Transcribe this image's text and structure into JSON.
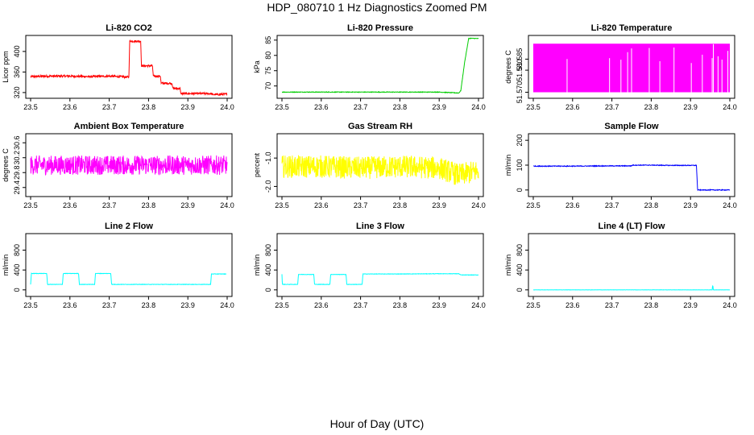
{
  "figure": {
    "title": "HDP_080710  1 Hz Diagnostics Zoomed PM",
    "xlabel": "Hour of Day (UTC)"
  },
  "chart_data": [
    {
      "type": "line",
      "title": "Li-820 CO2",
      "ylabel": "Licor ppm",
      "color": "#ff0000",
      "xlim": [
        23.5,
        24.0
      ],
      "ylim": [
        312,
        428
      ],
      "xticks": [
        "23.5",
        "23.6",
        "23.7",
        "23.8",
        "23.9",
        "24.0"
      ],
      "yticks": [
        "320",
        "360",
        "400"
      ],
      "noise": 2,
      "x": [
        23.5,
        23.55,
        23.6,
        23.65,
        23.7,
        23.75,
        23.752,
        23.78,
        23.782,
        23.81,
        23.812,
        23.83,
        23.832,
        23.86,
        23.862,
        23.88,
        23.882,
        23.96,
        23.962,
        24.0
      ],
      "y": [
        351,
        352,
        352,
        351,
        352,
        350,
        420,
        420,
        372,
        372,
        352,
        352,
        338,
        338,
        328,
        328,
        318,
        318,
        316,
        317
      ]
    },
    {
      "type": "line",
      "title": "Li-820 Pressure",
      "ylabel": "kPa",
      "color": "#00cc00",
      "xlim": [
        23.5,
        24.0
      ],
      "ylim": [
        66.5,
        86
      ],
      "xticks": [
        "23.5",
        "23.6",
        "23.7",
        "23.8",
        "23.9",
        "24.0"
      ],
      "yticks": [
        "70",
        "75",
        "80",
        "85"
      ],
      "noise": 0.1,
      "x": [
        23.5,
        23.6,
        23.7,
        23.8,
        23.9,
        23.95,
        23.955,
        23.965,
        23.975,
        23.98,
        24.0
      ],
      "y": [
        68,
        68,
        68,
        68,
        68,
        67.7,
        68.5,
        78,
        85.5,
        85.6,
        85.5
      ]
    },
    {
      "type": "area",
      "title": "Li-820 Temperature",
      "ylabel": "degrees C",
      "color": "#ff00ff",
      "xlim": [
        23.5,
        24.0
      ],
      "ylim": [
        51.568,
        51.595
      ],
      "xticks": [
        "23.5",
        "23.6",
        "23.7",
        "23.8",
        "23.9",
        "24.0"
      ],
      "yticks": [
        "51.570",
        "51.580",
        "51.585"
      ],
      "band": [
        51.57,
        51.592
      ],
      "gaps": [
        23.586,
        23.694,
        23.723,
        23.74,
        23.75,
        23.795,
        23.822,
        23.858,
        23.902,
        23.93,
        23.955,
        23.958,
        23.97,
        23.98,
        23.995
      ]
    },
    {
      "type": "line",
      "title": "Ambient Box Temperature",
      "ylabel": "degrees C",
      "color": "#ff00ff",
      "xlim": [
        23.5,
        24.0
      ],
      "ylim": [
        29.2,
        30.8
      ],
      "xticks": [
        "23.5",
        "23.6",
        "23.7",
        "23.8",
        "23.9",
        "24.0"
      ],
      "yticks": [
        "29.4",
        "29.8",
        "30.2",
        "30.6"
      ],
      "noise": 0.26,
      "x": [
        23.5,
        24.0
      ],
      "y": [
        30.0,
        30.0
      ]
    },
    {
      "type": "line",
      "title": "Gas Stream RH",
      "ylabel": "percent",
      "color": "#ffff00",
      "xlim": [
        23.5,
        24.0
      ],
      "ylim": [
        -2.3,
        -0.2
      ],
      "xticks": [
        "23.5",
        "23.6",
        "23.7",
        "23.8",
        "23.9",
        "24.0"
      ],
      "yticks": [
        "-2.0",
        "-1.0"
      ],
      "noise": 0.4,
      "x": [
        23.5,
        23.6,
        23.7,
        23.8,
        23.9,
        23.95,
        24.0
      ],
      "y": [
        -1.3,
        -1.3,
        -1.35,
        -1.3,
        -1.35,
        -1.6,
        -1.45
      ]
    },
    {
      "type": "line",
      "title": "Sample Flow",
      "ylabel": "ml/min",
      "color": "#0000ff",
      "xlim": [
        23.5,
        24.0
      ],
      "ylim": [
        -20,
        220
      ],
      "xticks": [
        "23.5",
        "23.6",
        "23.7",
        "23.8",
        "23.9",
        "24.0"
      ],
      "yticks": [
        "0",
        "100",
        "200"
      ],
      "noise": 1.5,
      "x": [
        23.5,
        23.6,
        23.7,
        23.75,
        23.752,
        23.8,
        23.85,
        23.915,
        23.918,
        24.0
      ],
      "y": [
        96,
        96,
        97,
        97,
        100,
        100,
        99,
        99,
        0,
        0
      ]
    },
    {
      "type": "line",
      "title": "Line 2 Flow",
      "ylabel": "ml/min",
      "color": "#00ffff",
      "xlim": [
        23.5,
        24.0
      ],
      "ylim": [
        -100,
        1100
      ],
      "xticks": [
        "23.5",
        "23.6",
        "23.7",
        "23.8",
        "23.9",
        "24.0"
      ],
      "yticks": [
        "0",
        "400",
        "800"
      ],
      "noise": 4,
      "x": [
        23.5,
        23.502,
        23.541,
        23.543,
        23.581,
        23.583,
        23.622,
        23.624,
        23.663,
        23.665,
        23.704,
        23.706,
        23.958,
        23.96,
        23.998
      ],
      "y": [
        110,
        330,
        330,
        110,
        110,
        330,
        330,
        110,
        110,
        330,
        330,
        110,
        110,
        320,
        320
      ]
    },
    {
      "type": "line",
      "title": "Line 3 Flow",
      "ylabel": "ml/min",
      "color": "#00ffff",
      "xlim": [
        23.5,
        24.0
      ],
      "ylim": [
        -100,
        1100
      ],
      "xticks": [
        "23.5",
        "23.6",
        "23.7",
        "23.8",
        "23.9",
        "24.0"
      ],
      "yticks": [
        "0",
        "400",
        "800"
      ],
      "noise": 4,
      "x": [
        23.5,
        23.501,
        23.503,
        23.54,
        23.542,
        23.581,
        23.583,
        23.622,
        23.624,
        23.663,
        23.665,
        23.704,
        23.706,
        23.8,
        23.9,
        23.95,
        23.955,
        24.0
      ],
      "y": [
        320,
        110,
        110,
        110,
        310,
        310,
        110,
        110,
        310,
        310,
        110,
        110,
        320,
        320,
        325,
        325,
        300,
        300
      ]
    },
    {
      "type": "line",
      "title": "Line 4 (LT) Flow",
      "ylabel": "ml/min",
      "color": "#00ffff",
      "xlim": [
        23.5,
        24.0
      ],
      "ylim": [
        -100,
        1100
      ],
      "xticks": [
        "23.5",
        "23.6",
        "23.7",
        "23.8",
        "23.9",
        "24.0"
      ],
      "yticks": [
        "0",
        "400",
        "800"
      ],
      "noise": 2,
      "x": [
        23.5,
        23.6,
        23.7,
        23.8,
        23.9,
        23.955,
        23.956,
        23.957,
        23.958,
        24.0
      ],
      "y": [
        0,
        0,
        0,
        0,
        0,
        0,
        80,
        80,
        0,
        0
      ]
    }
  ]
}
